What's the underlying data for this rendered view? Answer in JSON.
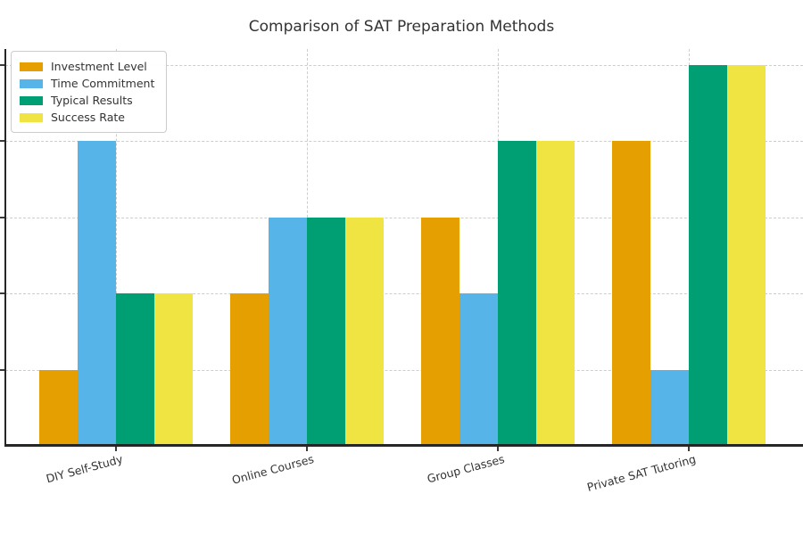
{
  "page": {
    "background": "#ffffff"
  },
  "chart_data": {
    "type": "bar",
    "title": "Comparison of SAT Preparation Methods",
    "categories": [
      "DIY Self-Study",
      "Online Courses",
      "Group Classes",
      "Private SAT Tutoring"
    ],
    "series": [
      {
        "name": "Investment Level",
        "color": "#E69F00",
        "values": [
          2,
          4,
          6,
          8
        ]
      },
      {
        "name": "Time Commitment",
        "color": "#56B4E9",
        "values": [
          8,
          6,
          4,
          2
        ]
      },
      {
        "name": "Typical Results",
        "color": "#009E73",
        "values": [
          4,
          6,
          8,
          10
        ]
      },
      {
        "name": "Success Rate",
        "color": "#F0E442",
        "values": [
          4,
          6,
          8,
          10
        ]
      }
    ],
    "ylim": [
      0,
      10.4
    ],
    "y_gridline_values": [
      2,
      4,
      6,
      8,
      10
    ],
    "grid_style": "dashed",
    "legend_position": "upper-left",
    "xlabel": "",
    "ylabel": ""
  },
  "styles": {
    "grid_color": "#cdcdcd",
    "spine_color": "#262626",
    "text_color": "#333333",
    "legend_border": "#cccccc",
    "legend_background": "#ffffff"
  }
}
